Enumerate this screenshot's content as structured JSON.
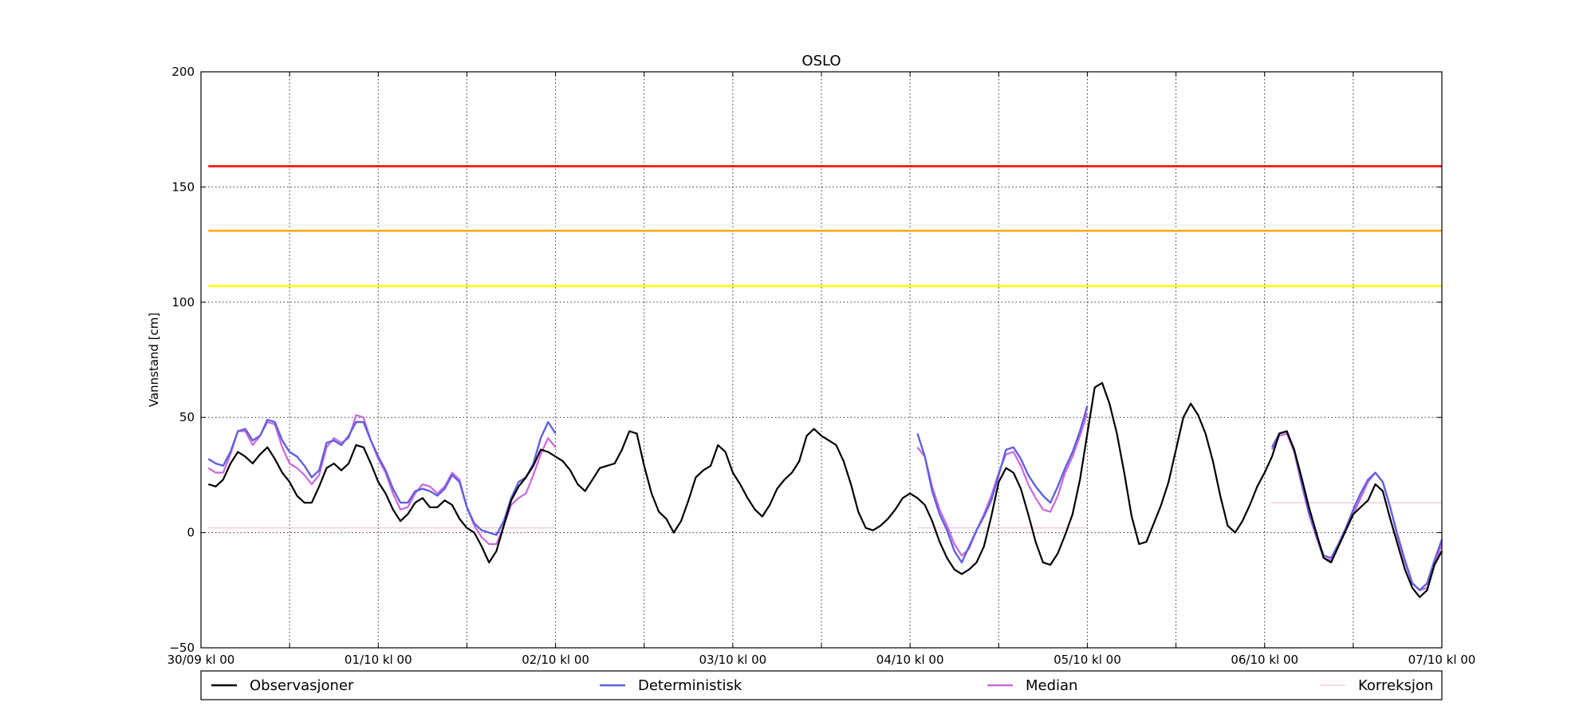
{
  "chart_data": {
    "type": "line",
    "title": "OSLO",
    "xlabel": "",
    "ylabel": "Vannstand [cm]",
    "ylim": [
      -50,
      200
    ],
    "xlim_hours": [
      0,
      168
    ],
    "y_ticks": [
      "−50",
      "0",
      "50",
      "100",
      "150",
      "200"
    ],
    "y_tick_values": [
      -50,
      0,
      50,
      100,
      150,
      200
    ],
    "x_ticks": [
      {
        "h": 0,
        "label": "30/09 kl 00"
      },
      {
        "h": 24,
        "label": "01/10 kl 00"
      },
      {
        "h": 48,
        "label": "02/10 kl 00"
      },
      {
        "h": 72,
        "label": "03/10 kl 00"
      },
      {
        "h": 96,
        "label": "04/10 kl 00"
      },
      {
        "h": 120,
        "label": "05/10 kl 00"
      },
      {
        "h": 144,
        "label": "06/10 kl 00"
      },
      {
        "h": 168,
        "label": "07/10 kl 00"
      }
    ],
    "minor_x_ticks": [
      12,
      36,
      60,
      84,
      108,
      132,
      156
    ],
    "grid": true,
    "threshold_lines": [
      {
        "value": 159,
        "color": "#ff0000"
      },
      {
        "value": 131,
        "color": "#ffa500"
      },
      {
        "value": 107,
        "color": "#ffff00"
      }
    ],
    "series": [
      {
        "name": "Observasjoner",
        "color": "#000000",
        "x": [
          1,
          2,
          3,
          4,
          5,
          6,
          7,
          8,
          9,
          10,
          11,
          12,
          13,
          14,
          15,
          16,
          17,
          18,
          19,
          20,
          21,
          22,
          23,
          24,
          25,
          26,
          27,
          28,
          29,
          30,
          31,
          32,
          33,
          34,
          35,
          36,
          37,
          38,
          39,
          40,
          41,
          42,
          43,
          44,
          45,
          46,
          47,
          48,
          49,
          50,
          51,
          52,
          53,
          54,
          55,
          56,
          57,
          58,
          59,
          60,
          61,
          62,
          63,
          64,
          65,
          66,
          67,
          68,
          69,
          70,
          71,
          72,
          73,
          74,
          75,
          76,
          77,
          78,
          79,
          80,
          81,
          82,
          83,
          84,
          85,
          86,
          87,
          88,
          89,
          90,
          91,
          92,
          93,
          94,
          95,
          96,
          97,
          98,
          99,
          100,
          101,
          102,
          103,
          104,
          105,
          106,
          107,
          108,
          109,
          110,
          111,
          112,
          113,
          114,
          115,
          116,
          117,
          118,
          119,
          120,
          121,
          122,
          123,
          124,
          125,
          126,
          127,
          128,
          129,
          130,
          131,
          132,
          133,
          134,
          135,
          136,
          137,
          138,
          139,
          140,
          141,
          142,
          143,
          144,
          145,
          146,
          147,
          148,
          149,
          150,
          151,
          152,
          153,
          154,
          155,
          156,
          157,
          158,
          159,
          160,
          161,
          162,
          163,
          164,
          165,
          166,
          167,
          168
        ],
        "y": [
          21,
          20,
          23,
          30,
          35,
          33,
          30,
          34,
          37,
          32,
          26,
          22,
          16,
          13,
          13,
          20,
          28,
          30,
          27,
          30,
          38,
          37,
          30,
          22,
          17,
          10,
          5,
          8,
          13,
          15,
          11,
          11,
          14,
          12,
          6,
          2,
          0,
          -6,
          -13,
          -8,
          3,
          14,
          20,
          24,
          29,
          36,
          35,
          33,
          31,
          27,
          21,
          18,
          23,
          28,
          29,
          30,
          36,
          44,
          43,
          29,
          17,
          9,
          6,
          0,
          5,
          14,
          24,
          27,
          29,
          38,
          35,
          26,
          21,
          15,
          10,
          7,
          12,
          19,
          23,
          26,
          31,
          42,
          45,
          42,
          40,
          38,
          31,
          21,
          9,
          2,
          1,
          3,
          6,
          10,
          15,
          17,
          15,
          12,
          5,
          -4,
          -11,
          -16,
          -18,
          -16,
          -13,
          -6,
          7,
          22,
          28,
          26,
          19,
          8,
          -4,
          -13,
          -14,
          -9,
          -1,
          8,
          23,
          43,
          63,
          65,
          56,
          43,
          26,
          7,
          -5,
          -4,
          4,
          12,
          22,
          36,
          50,
          56,
          51,
          43,
          31,
          16,
          3,
          0,
          5,
          12,
          20,
          26,
          33,
          43,
          44,
          36,
          24,
          11,
          0,
          -11,
          -13,
          -6,
          1,
          8,
          11,
          14,
          21,
          18,
          6,
          -5,
          -16,
          -24,
          -28,
          -25,
          -14,
          -8
        ]
      },
      {
        "name": "Deterministisk",
        "color": "#6060e0",
        "segments": [
          {
            "x": [
              1,
              2,
              3,
              4,
              5,
              6,
              7,
              8,
              9,
              10,
              11,
              12,
              13,
              14,
              15,
              16,
              17,
              18,
              19,
              20,
              21,
              22,
              23,
              24,
              25,
              26,
              27,
              28,
              29,
              30,
              31,
              32,
              33,
              34,
              35,
              36,
              37,
              38,
              39,
              40,
              41,
              42,
              43,
              44,
              45,
              46,
              47,
              48
            ],
            "y": [
              32,
              30,
              29,
              35,
              44,
              45,
              40,
              42,
              49,
              48,
              40,
              35,
              33,
              29,
              24,
              27,
              39,
              40,
              38,
              42,
              48,
              48,
              40,
              33,
              27,
              19,
              13,
              13,
              18,
              19,
              18,
              16,
              19,
              25,
              22,
              11,
              4,
              1,
              0,
              -1,
              5,
              15,
              22,
              24,
              30,
              41,
              48,
              43
            ]
          },
          {
            "x": [
              97,
              98,
              99,
              100,
              101,
              102,
              103,
              104,
              105,
              106,
              107,
              108,
              109,
              110,
              111,
              112,
              113,
              114,
              115,
              116,
              117,
              118,
              119,
              120
            ],
            "y": [
              43,
              33,
              18,
              8,
              1,
              -8,
              -13,
              -6,
              1,
              7,
              14,
              25,
              36,
              37,
              32,
              25,
              20,
              16,
              13,
              20,
              28,
              35,
              44,
              55
            ]
          },
          {
            "x": [
              145,
              146,
              147,
              148,
              149,
              150,
              151,
              152,
              153,
              154,
              155,
              156,
              157,
              158,
              159,
              160,
              161,
              162,
              163,
              164,
              165,
              166,
              167,
              168
            ],
            "y": [
              37,
              43,
              44,
              36,
              22,
              9,
              -1,
              -10,
              -11,
              -5,
              2,
              10,
              17,
              23,
              26,
              22,
              11,
              -1,
              -12,
              -22,
              -25,
              -22,
              -12,
              -3
            ]
          }
        ]
      },
      {
        "name": "Median",
        "color": "#cc66dd",
        "segments": [
          {
            "x": [
              1,
              2,
              3,
              4,
              5,
              6,
              7,
              8,
              9,
              10,
              11,
              12,
              13,
              14,
              15,
              16,
              17,
              18,
              19,
              20,
              21,
              22,
              23,
              24,
              25,
              26,
              27,
              28,
              29,
              30,
              31,
              32,
              33,
              34,
              35,
              36,
              37,
              38,
              39,
              40,
              41,
              42,
              43,
              44,
              45,
              46,
              47,
              48
            ],
            "y": [
              28,
              26,
              26,
              34,
              44,
              44,
              38,
              42,
              48,
              47,
              37,
              30,
              28,
              25,
              21,
              25,
              37,
              41,
              39,
              41,
              51,
              50,
              40,
              32,
              26,
              17,
              10,
              11,
              17,
              21,
              20,
              17,
              20,
              26,
              23,
              11,
              3,
              -2,
              -5,
              -5,
              3,
              12,
              15,
              17,
              25,
              34,
              41,
              37
            ]
          },
          {
            "x": [
              97,
              98,
              99,
              100,
              101,
              102,
              103,
              104,
              105,
              106,
              107,
              108,
              109,
              110,
              111,
              112,
              113,
              114,
              115,
              116,
              117,
              118,
              119,
              120
            ],
            "y": [
              37,
              33,
              20,
              10,
              3,
              -5,
              -10,
              -7,
              1,
              8,
              16,
              26,
              34,
              35,
              29,
              21,
              15,
              10,
              9,
              16,
              26,
              33,
              42,
              52
            ]
          },
          {
            "x": [
              145,
              146,
              147,
              148,
              149,
              150,
              151,
              152,
              153,
              154,
              155,
              156,
              157,
              158,
              159,
              160,
              161,
              162,
              163,
              164,
              165,
              166,
              167,
              168
            ],
            "y": [
              36,
              42,
              43,
              35,
              21,
              8,
              -2,
              -11,
              -12,
              -6,
              1,
              8,
              15,
              22,
              26,
              22,
              11,
              -2,
              -13,
              -22,
              -25,
              -24,
              -14,
              -5
            ]
          }
        ]
      },
      {
        "name": "Korreksjon",
        "color": "#f4b8c4",
        "segments": [
          {
            "x": [
              1,
              48
            ],
            "y": [
              2,
              2
            ]
          },
          {
            "x": [
              97,
              120
            ],
            "y": [
              2,
              2
            ]
          },
          {
            "x": [
              145,
              168
            ],
            "y": [
              13,
              13
            ]
          }
        ]
      }
    ],
    "legend": {
      "placement": "bottom",
      "entries": [
        "Observasjoner",
        "Deterministisk",
        "Median",
        "Korreksjon"
      ]
    }
  }
}
